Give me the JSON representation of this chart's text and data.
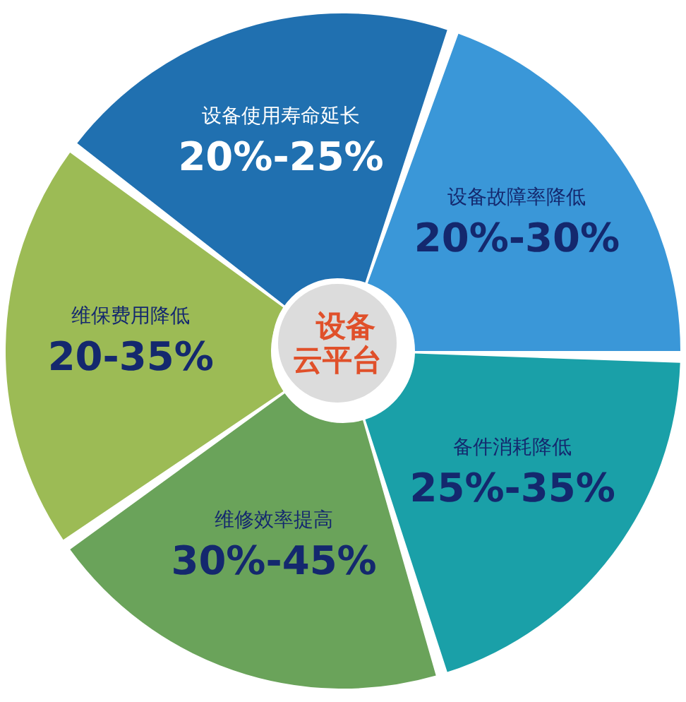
{
  "chart_data": {
    "type": "donut",
    "title": "设备云平台",
    "categories": [
      "设备故障率降低",
      "备件消耗降低",
      "维修效率提高",
      "维保费用降低",
      "设备使用寿命延长"
    ],
    "values": [
      20,
      20,
      20,
      20,
      20
    ],
    "annotations": [
      "20%-30%",
      "25%-35%",
      "30%-45%",
      "20-35%",
      "20%-25%"
    ],
    "colors": [
      "#3a97d8",
      "#1aa0a8",
      "#6aa35a",
      "#9cbb55",
      "#2070b0"
    ],
    "legend": false
  }
}
